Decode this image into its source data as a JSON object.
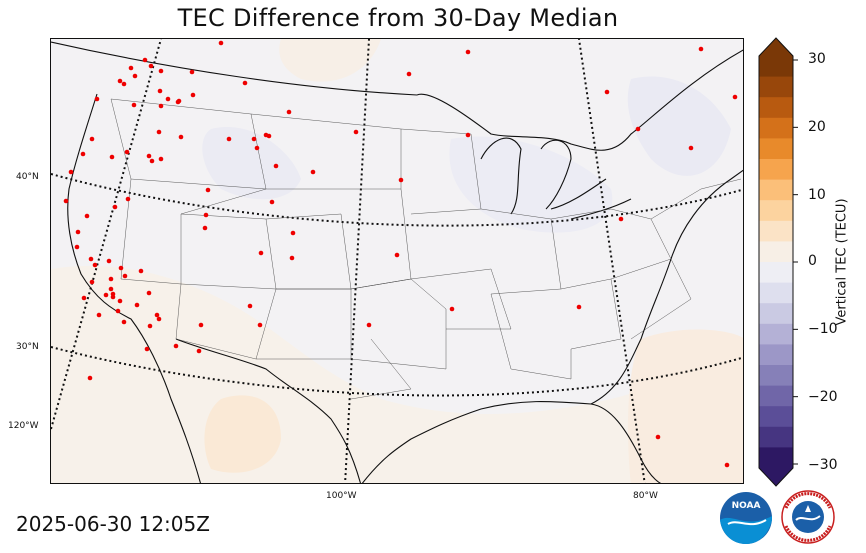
{
  "title": "TEC Difference from 30-Day Median",
  "timestamp": "2025-06-30 12:05Z",
  "lat_labels": [
    "40°N",
    "30°N",
    "120°W"
  ],
  "lon_labels": [
    "100°W",
    "80°W"
  ],
  "colorbar": {
    "label": "Vertical TEC (TECU)",
    "ticks": [
      "30",
      "20",
      "10",
      "0",
      "−10",
      "−20",
      "−30"
    ],
    "min": -30,
    "max": 30,
    "colors_positive": [
      "#f7efe6",
      "#fbe3c6",
      "#fcd39f",
      "#fbbf79",
      "#f6a44d",
      "#e88a2b",
      "#d4711a",
      "#b85a10",
      "#98470b",
      "#7a3807"
    ],
    "colors_negative": [
      "#eeeef4",
      "#dedfee",
      "#cacae3",
      "#b4b1d6",
      "#9c97c7",
      "#8680b8",
      "#7066a8",
      "#5b4e98",
      "#463581",
      "#2d1863"
    ]
  },
  "station_color": "#ee0000",
  "logos": [
    "NOAA",
    "NATIONAL WEATHER SERVICE"
  ]
}
